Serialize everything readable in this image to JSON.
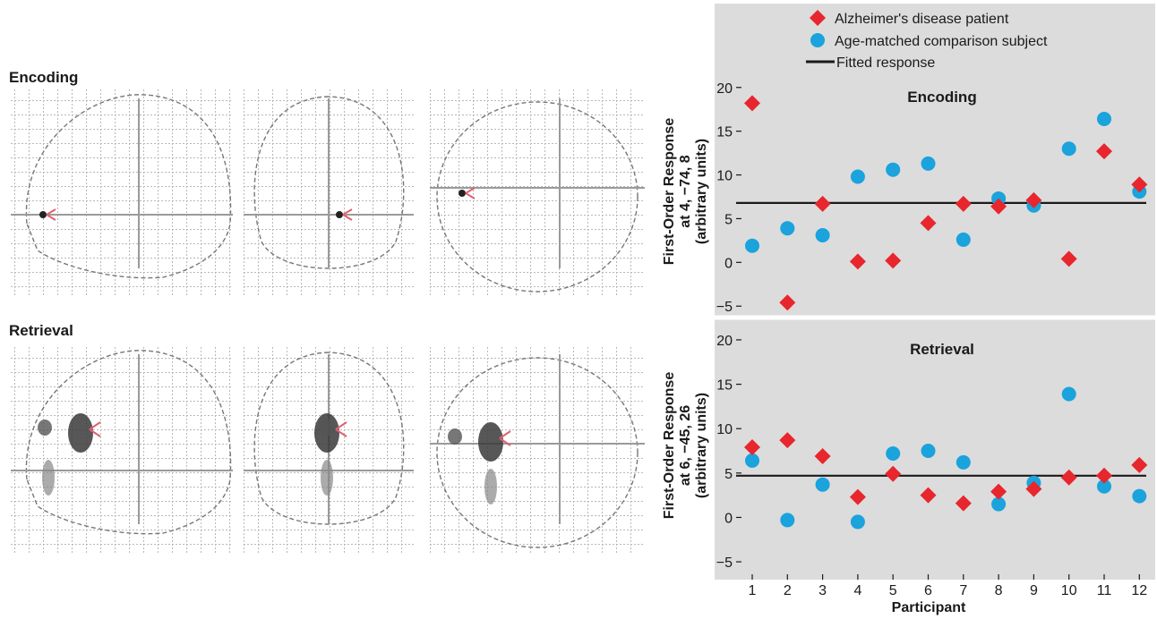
{
  "row_labels": [
    "Encoding",
    "Retrieval"
  ],
  "legend": {
    "patient": "Alzheimer's disease patient",
    "comparison": "Age-matched comparison subject",
    "fit": "Fitted response"
  },
  "colors": {
    "patient": "#e8262d",
    "comparison": "#1aa3dd",
    "fit": "#1a1a1a",
    "panel_bg": "#dcdcdc"
  },
  "xlabel": "Participant",
  "chart_data": [
    {
      "type": "scatter",
      "title": "Encoding",
      "ylabel_lines": [
        "First-Order Response",
        "at 4, −74, 8",
        "(arbitrary units)"
      ],
      "x": [
        1,
        2,
        3,
        4,
        5,
        6,
        7,
        8,
        9,
        10,
        11,
        12
      ],
      "ylim": [
        -6,
        21
      ],
      "yticks": [
        -5,
        0,
        5,
        10,
        15,
        20
      ],
      "ytick_labels": [
        "−5",
        "0",
        "5",
        "10",
        "15",
        "20"
      ],
      "fitted": 6.8,
      "series": [
        {
          "name": "Alzheimer's disease patient",
          "marker": "diamond",
          "values": [
            18.2,
            -4.6,
            6.7,
            0.1,
            0.2,
            4.5,
            6.7,
            6.4,
            7.1,
            0.4,
            12.7,
            8.9
          ]
        },
        {
          "name": "Age-matched comparison subject",
          "marker": "circle",
          "values": [
            1.9,
            3.9,
            3.1,
            9.8,
            10.6,
            11.3,
            2.6,
            7.3,
            6.5,
            13.0,
            16.4,
            8.1
          ]
        }
      ]
    },
    {
      "type": "scatter",
      "title": "Retrieval",
      "ylabel_lines": [
        "First-Order Response",
        "at 6, −45, 26",
        "(arbitrary units)"
      ],
      "x": [
        1,
        2,
        3,
        4,
        5,
        6,
        7,
        8,
        9,
        10,
        11,
        12
      ],
      "ylim": [
        -6,
        21
      ],
      "yticks": [
        -5,
        0,
        5,
        10,
        15,
        20
      ],
      "ytick_labels": [
        "−5",
        "0",
        "5",
        "10",
        "15",
        "20"
      ],
      "xtick_labels": [
        "1",
        "2",
        "3",
        "4",
        "5",
        "6",
        "7",
        "8",
        "9",
        "10",
        "11",
        "12"
      ],
      "fitted": 4.7,
      "series": [
        {
          "name": "Alzheimer's disease patient",
          "marker": "diamond",
          "values": [
            7.9,
            8.7,
            6.9,
            2.3,
            4.9,
            2.5,
            1.6,
            2.9,
            3.2,
            4.5,
            4.7,
            5.9
          ]
        },
        {
          "name": "Age-matched comparison subject",
          "marker": "circle",
          "values": [
            6.4,
            -0.3,
            3.7,
            -0.5,
            7.2,
            7.5,
            6.2,
            1.5,
            3.9,
            13.9,
            3.5,
            2.4
          ]
        }
      ]
    }
  ]
}
